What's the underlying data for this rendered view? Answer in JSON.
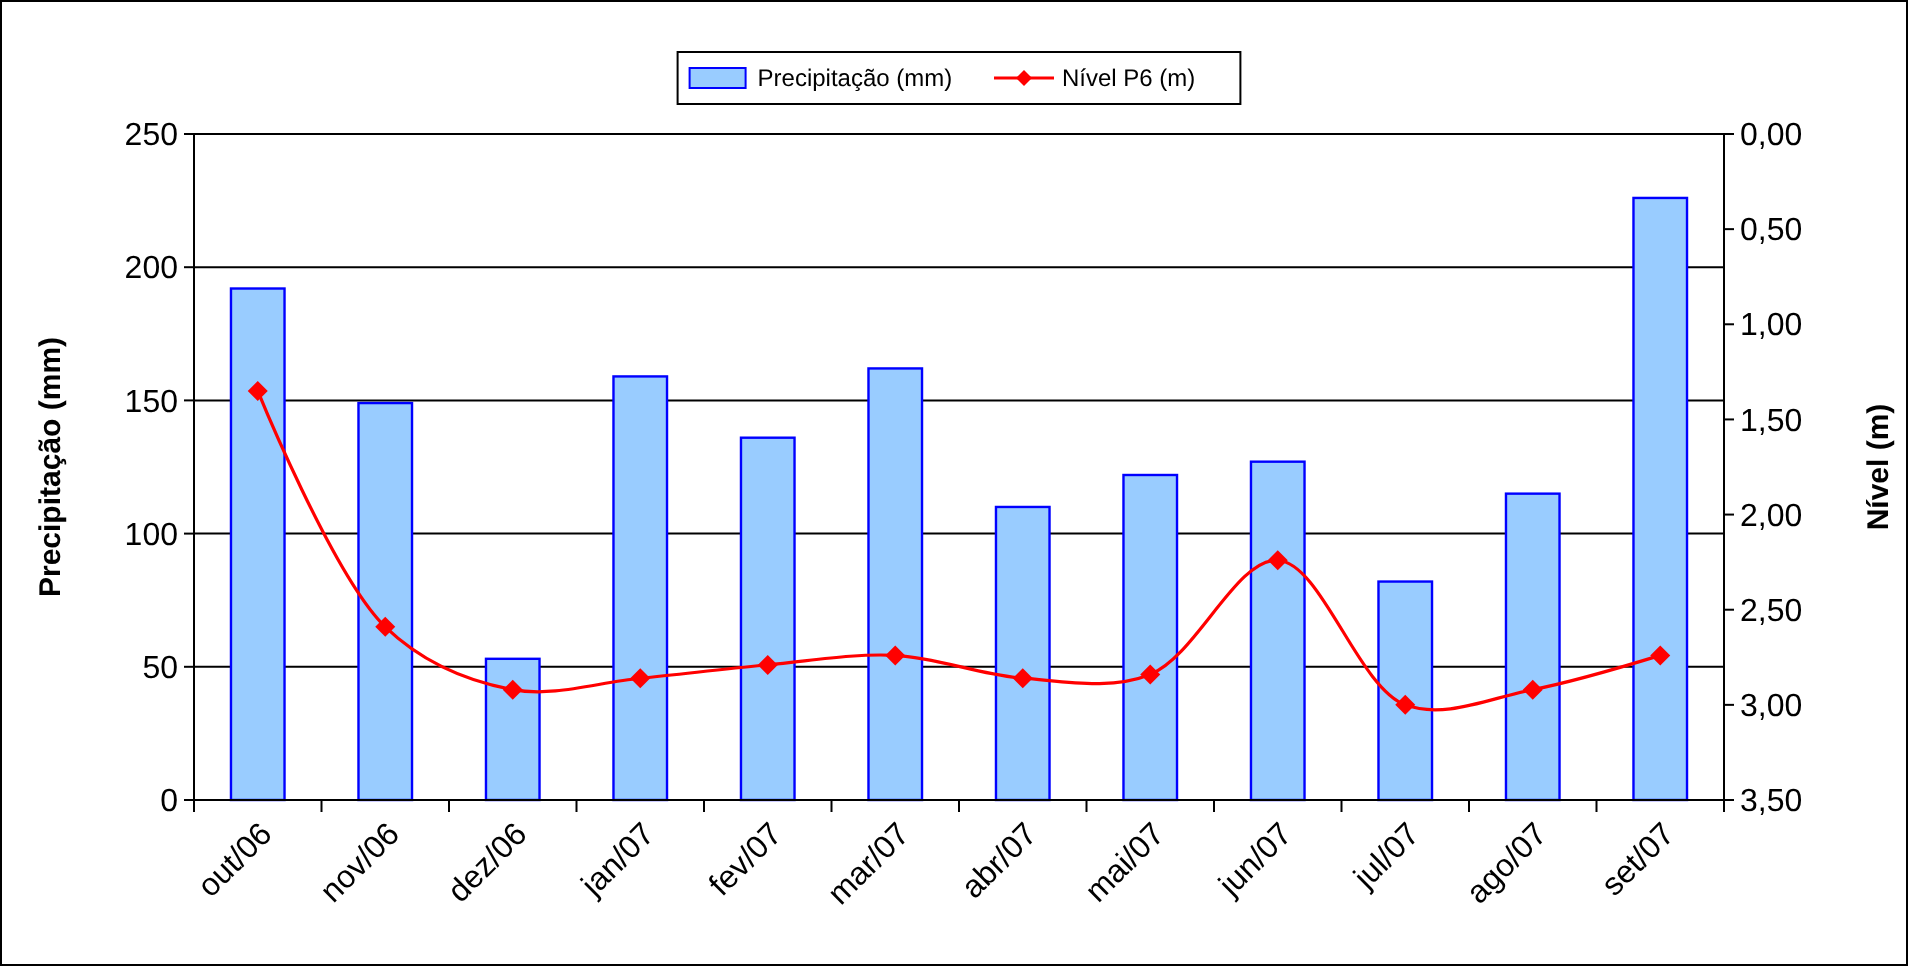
{
  "chart_data": {
    "type": "bar",
    "categories": [
      "out/06",
      "nov/06",
      "dez/06",
      "jan/07",
      "fev/07",
      "mar/07",
      "abr/07",
      "mai/07",
      "jun/07",
      "jul/07",
      "ago/07",
      "set/07"
    ],
    "series": [
      {
        "name": "Precipitação (mm)",
        "color": "#99ccff",
        "values": [
          192,
          149,
          53,
          159,
          136,
          162,
          110,
          122,
          127,
          82,
          115,
          226
        ]
      },
      {
        "name": "Nível P6 (m)",
        "type": "line",
        "axis": "y2",
        "color": "#ff0000",
        "marker": "diamond",
        "line_style": "solid",
        "values": [
          1.35,
          2.59,
          2.92,
          2.86,
          2.79,
          2.74,
          2.86,
          2.84,
          2.24,
          3.0,
          2.92,
          2.74
        ]
      }
    ],
    "ylabel": "Precipitação (mm)",
    "y2label": "Nível (m)",
    "ylim": [
      0,
      250
    ],
    "yticks": [
      0,
      50,
      100,
      150,
      200,
      250
    ],
    "y2lim": [
      3.5,
      0
    ],
    "y2ticks": [
      {
        "value": 0,
        "label": "0,00"
      },
      {
        "value": 0.5,
        "label": "0,50"
      },
      {
        "value": 1,
        "label": "1,00"
      },
      {
        "value": 1.5,
        "label": "1,50"
      },
      {
        "value": 2,
        "label": "2,00"
      },
      {
        "value": 2.5,
        "label": "2,50"
      },
      {
        "value": 3,
        "label": "3,00"
      },
      {
        "value": 3.5,
        "label": "3,50"
      }
    ],
    "grid": "y",
    "legend": "top"
  }
}
